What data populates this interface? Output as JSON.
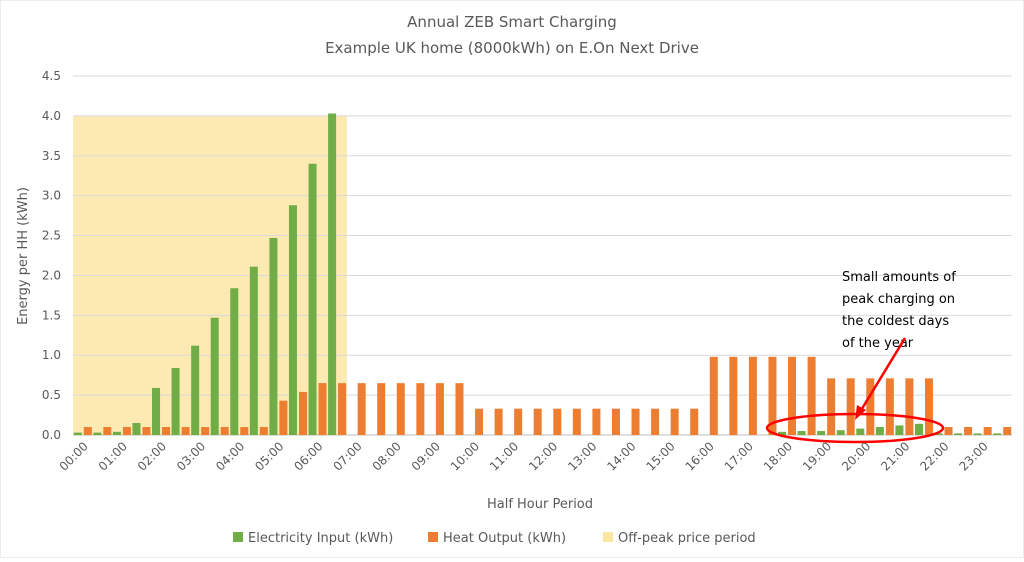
{
  "chart_data": {
    "type": "bar",
    "title": "Annual ZEB Smart Charging",
    "subtitle": "Example UK home (8000kWh) on E.On Next Drive",
    "xlabel": "Half Hour Period",
    "ylabel": "Energy per HH (kWh)",
    "ylim": [
      0,
      4.5
    ],
    "yticks": [
      "0.0",
      "0.5",
      "1.0",
      "1.5",
      "2.0",
      "2.5",
      "3.0",
      "3.5",
      "4.0",
      "4.5"
    ],
    "grid": true,
    "legend_position": "bottom",
    "categories": [
      "00:00",
      "00:30",
      "01:00",
      "01:30",
      "02:00",
      "02:30",
      "03:00",
      "03:30",
      "04:00",
      "04:30",
      "05:00",
      "05:30",
      "06:00",
      "06:30",
      "07:00",
      "07:30",
      "08:00",
      "08:30",
      "09:00",
      "09:30",
      "10:00",
      "10:30",
      "11:00",
      "11:30",
      "12:00",
      "12:30",
      "13:00",
      "13:30",
      "14:00",
      "14:30",
      "15:00",
      "15:30",
      "16:00",
      "16:30",
      "17:00",
      "17:30",
      "18:00",
      "18:30",
      "19:00",
      "19:30",
      "20:00",
      "20:30",
      "21:00",
      "21:30",
      "22:00",
      "22:30",
      "23:00",
      "23:30"
    ],
    "series": [
      {
        "name": "Electricity Input (kWh)",
        "color": "#70ad47",
        "values": [
          0.03,
          0.03,
          0.04,
          0.15,
          0.59,
          0.84,
          1.12,
          1.47,
          1.84,
          2.11,
          2.47,
          2.88,
          3.4,
          4.03,
          0,
          0,
          0,
          0,
          0,
          0,
          0,
          0,
          0,
          0,
          0,
          0,
          0,
          0,
          0,
          0,
          0,
          0,
          0,
          0,
          0,
          0,
          0.04,
          0.05,
          0.05,
          0.06,
          0.08,
          0.1,
          0.12,
          0.14,
          0.02,
          0.02,
          0.02,
          0.02
        ]
      },
      {
        "name": "Heat Output (kWh)",
        "color": "#ed7d31",
        "values": [
          0.1,
          0.1,
          0.1,
          0.1,
          0.1,
          0.1,
          0.1,
          0.1,
          0.1,
          0.1,
          0.43,
          0.54,
          0.65,
          0.65,
          0.65,
          0.65,
          0.65,
          0.65,
          0.65,
          0.65,
          0.33,
          0.33,
          0.33,
          0.33,
          0.33,
          0.33,
          0.33,
          0.33,
          0.33,
          0.33,
          0.33,
          0.33,
          0.98,
          0.98,
          0.98,
          0.98,
          0.98,
          0.98,
          0.71,
          0.71,
          0.71,
          0.71,
          0.71,
          0.71,
          0.1,
          0.1,
          0.1,
          0.1
        ]
      }
    ],
    "shaded_region": {
      "name": "Off-peak price period",
      "color": "#fce6a4",
      "x_start": "00:00",
      "x_end": "06:30",
      "y_top": 4.0
    },
    "annotation": {
      "lines": [
        "Small amounts of",
        "peak charging on",
        "the coldest days",
        "of the year"
      ],
      "highlight": "18:00–21:30",
      "highlight_color": "#ff0000"
    }
  }
}
